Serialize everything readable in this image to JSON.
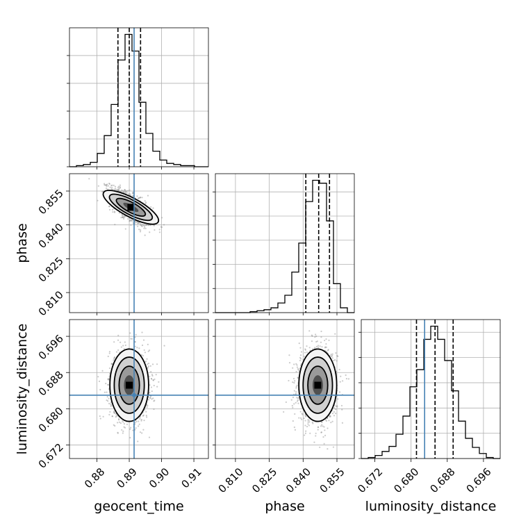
{
  "chart_data": {
    "type": "corner",
    "parameters": [
      {
        "name": "geocent_time",
        "label": "geocent_time",
        "range": [
          0.8715,
          0.9145
        ],
        "ticks": [
          0.88,
          0.89,
          0.9,
          0.91
        ],
        "tick_labels": [
          "0.88",
          "0.89",
          "0.90",
          "0.91"
        ],
        "truth": 0.8915,
        "quantiles": [
          0.8865,
          0.89,
          0.8935
        ]
      },
      {
        "name": "phase",
        "label": "phase",
        "range": [
          0.8011,
          0.8627
        ],
        "ticks": [
          0.81,
          0.825,
          0.84,
          0.855
        ],
        "tick_labels": [
          "0.810",
          "0.825",
          "0.840",
          "0.855"
        ],
        "truth": null,
        "quantiles": [
          0.8412,
          0.8469,
          0.8517
        ]
      },
      {
        "name": "luminosity_distance",
        "label": "luminosity_distance",
        "range": [
          0.669,
          0.6997
        ],
        "ticks": [
          0.672,
          0.68,
          0.688,
          0.696
        ],
        "tick_labels": [
          "0.672",
          "0.680",
          "0.688",
          "0.696"
        ],
        "truth": 0.683,
        "quantiles": [
          0.6812,
          0.6853,
          0.6893
        ]
      }
    ],
    "histograms": [
      {
        "parameter": "geocent_time",
        "bin_edges_range": [
          0.8715,
          0.9145
        ],
        "counts": [
          0,
          1,
          2,
          4,
          12,
          28,
          56,
          96,
          119,
          104,
          58,
          30,
          14,
          6,
          3,
          2,
          1,
          1,
          0,
          0
        ]
      },
      {
        "parameter": "phase",
        "bin_edges_range": [
          0.8011,
          0.8627
        ],
        "counts": [
          0,
          0,
          0,
          0,
          0,
          1,
          2,
          3,
          5,
          10,
          18,
          42,
          72,
          115,
          137,
          134,
          95,
          30,
          5,
          0
        ]
      },
      {
        "parameter": "luminosity_distance",
        "bin_edges_range": [
          0.669,
          0.6997
        ],
        "counts": [
          0,
          1,
          3,
          7,
          12,
          24,
          42,
          71,
          88,
          118,
          131,
          118,
          97,
          67,
          37,
          20,
          11,
          5,
          1,
          0
        ]
      }
    ],
    "scatter_2d": [
      {
        "x": "geocent_time",
        "y": "phase",
        "mean": [
          0.8905,
          0.8478
        ],
        "sigma": [
          0.0032,
          0.004
        ],
        "correlation": -0.7
      },
      {
        "x": "geocent_time",
        "y": "luminosity_distance",
        "mean": [
          0.89,
          0.6852
        ],
        "sigma": [
          0.003,
          0.004
        ],
        "correlation": 0.0
      },
      {
        "x": "phase",
        "y": "luminosity_distance",
        "mean": [
          0.8465,
          0.6852
        ],
        "sigma": [
          0.0042,
          0.004
        ],
        "correlation": 0.0
      }
    ],
    "truth_color": "#4682b4",
    "line_color": "#000000",
    "grid": true
  }
}
